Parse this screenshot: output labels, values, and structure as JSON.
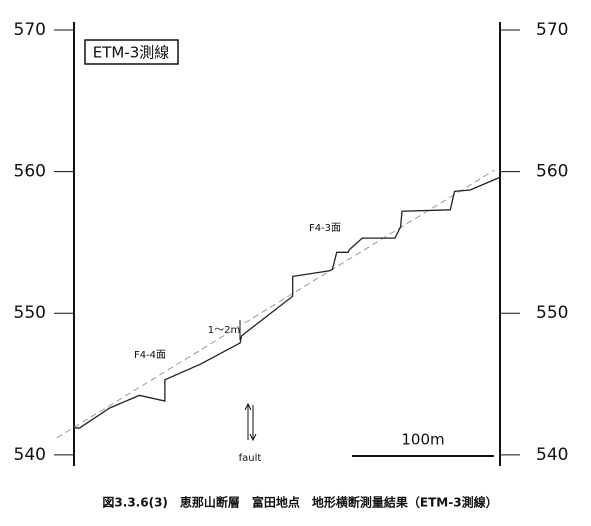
{
  "chart_data": {
    "type": "line",
    "title": "ETM-3測線",
    "caption": "図3.3.6(3)　恵那山断層　富田地点　地形横断測量結果（ETM-3測線）",
    "x": [
      0,
      4,
      25,
      46,
      64,
      64,
      89,
      117,
      118,
      154,
      154,
      180,
      182,
      185,
      193,
      194,
      203,
      226,
      230,
      231,
      265,
      268,
      279,
      300
    ],
    "series": [
      {
        "color": "#222222",
        "values": [
          541.9,
          541.9,
          543.3,
          544.2,
          543.8,
          545.3,
          546.4,
          547.9,
          548.4,
          551.2,
          552.6,
          553.0,
          553.1,
          554.3,
          554.3,
          554.5,
          555.3,
          555.3,
          556.1,
          557.2,
          557.3,
          558.6,
          558.7,
          559.6
        ]
      }
    ],
    "trend_line": {
      "color": "#999999",
      "x": [
        -12,
        296
      ],
      "values": [
        541.2,
        560.1
      ]
    },
    "xlim": [
      0,
      300
    ],
    "ylim": [
      539,
      571
    ],
    "yticks": [
      540,
      550,
      560,
      570
    ],
    "y2lim": [
      539,
      571
    ],
    "y2ticks": [
      540,
      550,
      560,
      570
    ],
    "annotations": [
      "F4-3面",
      "F4-4面",
      "1～2m",
      "fault"
    ],
    "scale_bar": {
      "label": "100m",
      "length": 100
    }
  }
}
